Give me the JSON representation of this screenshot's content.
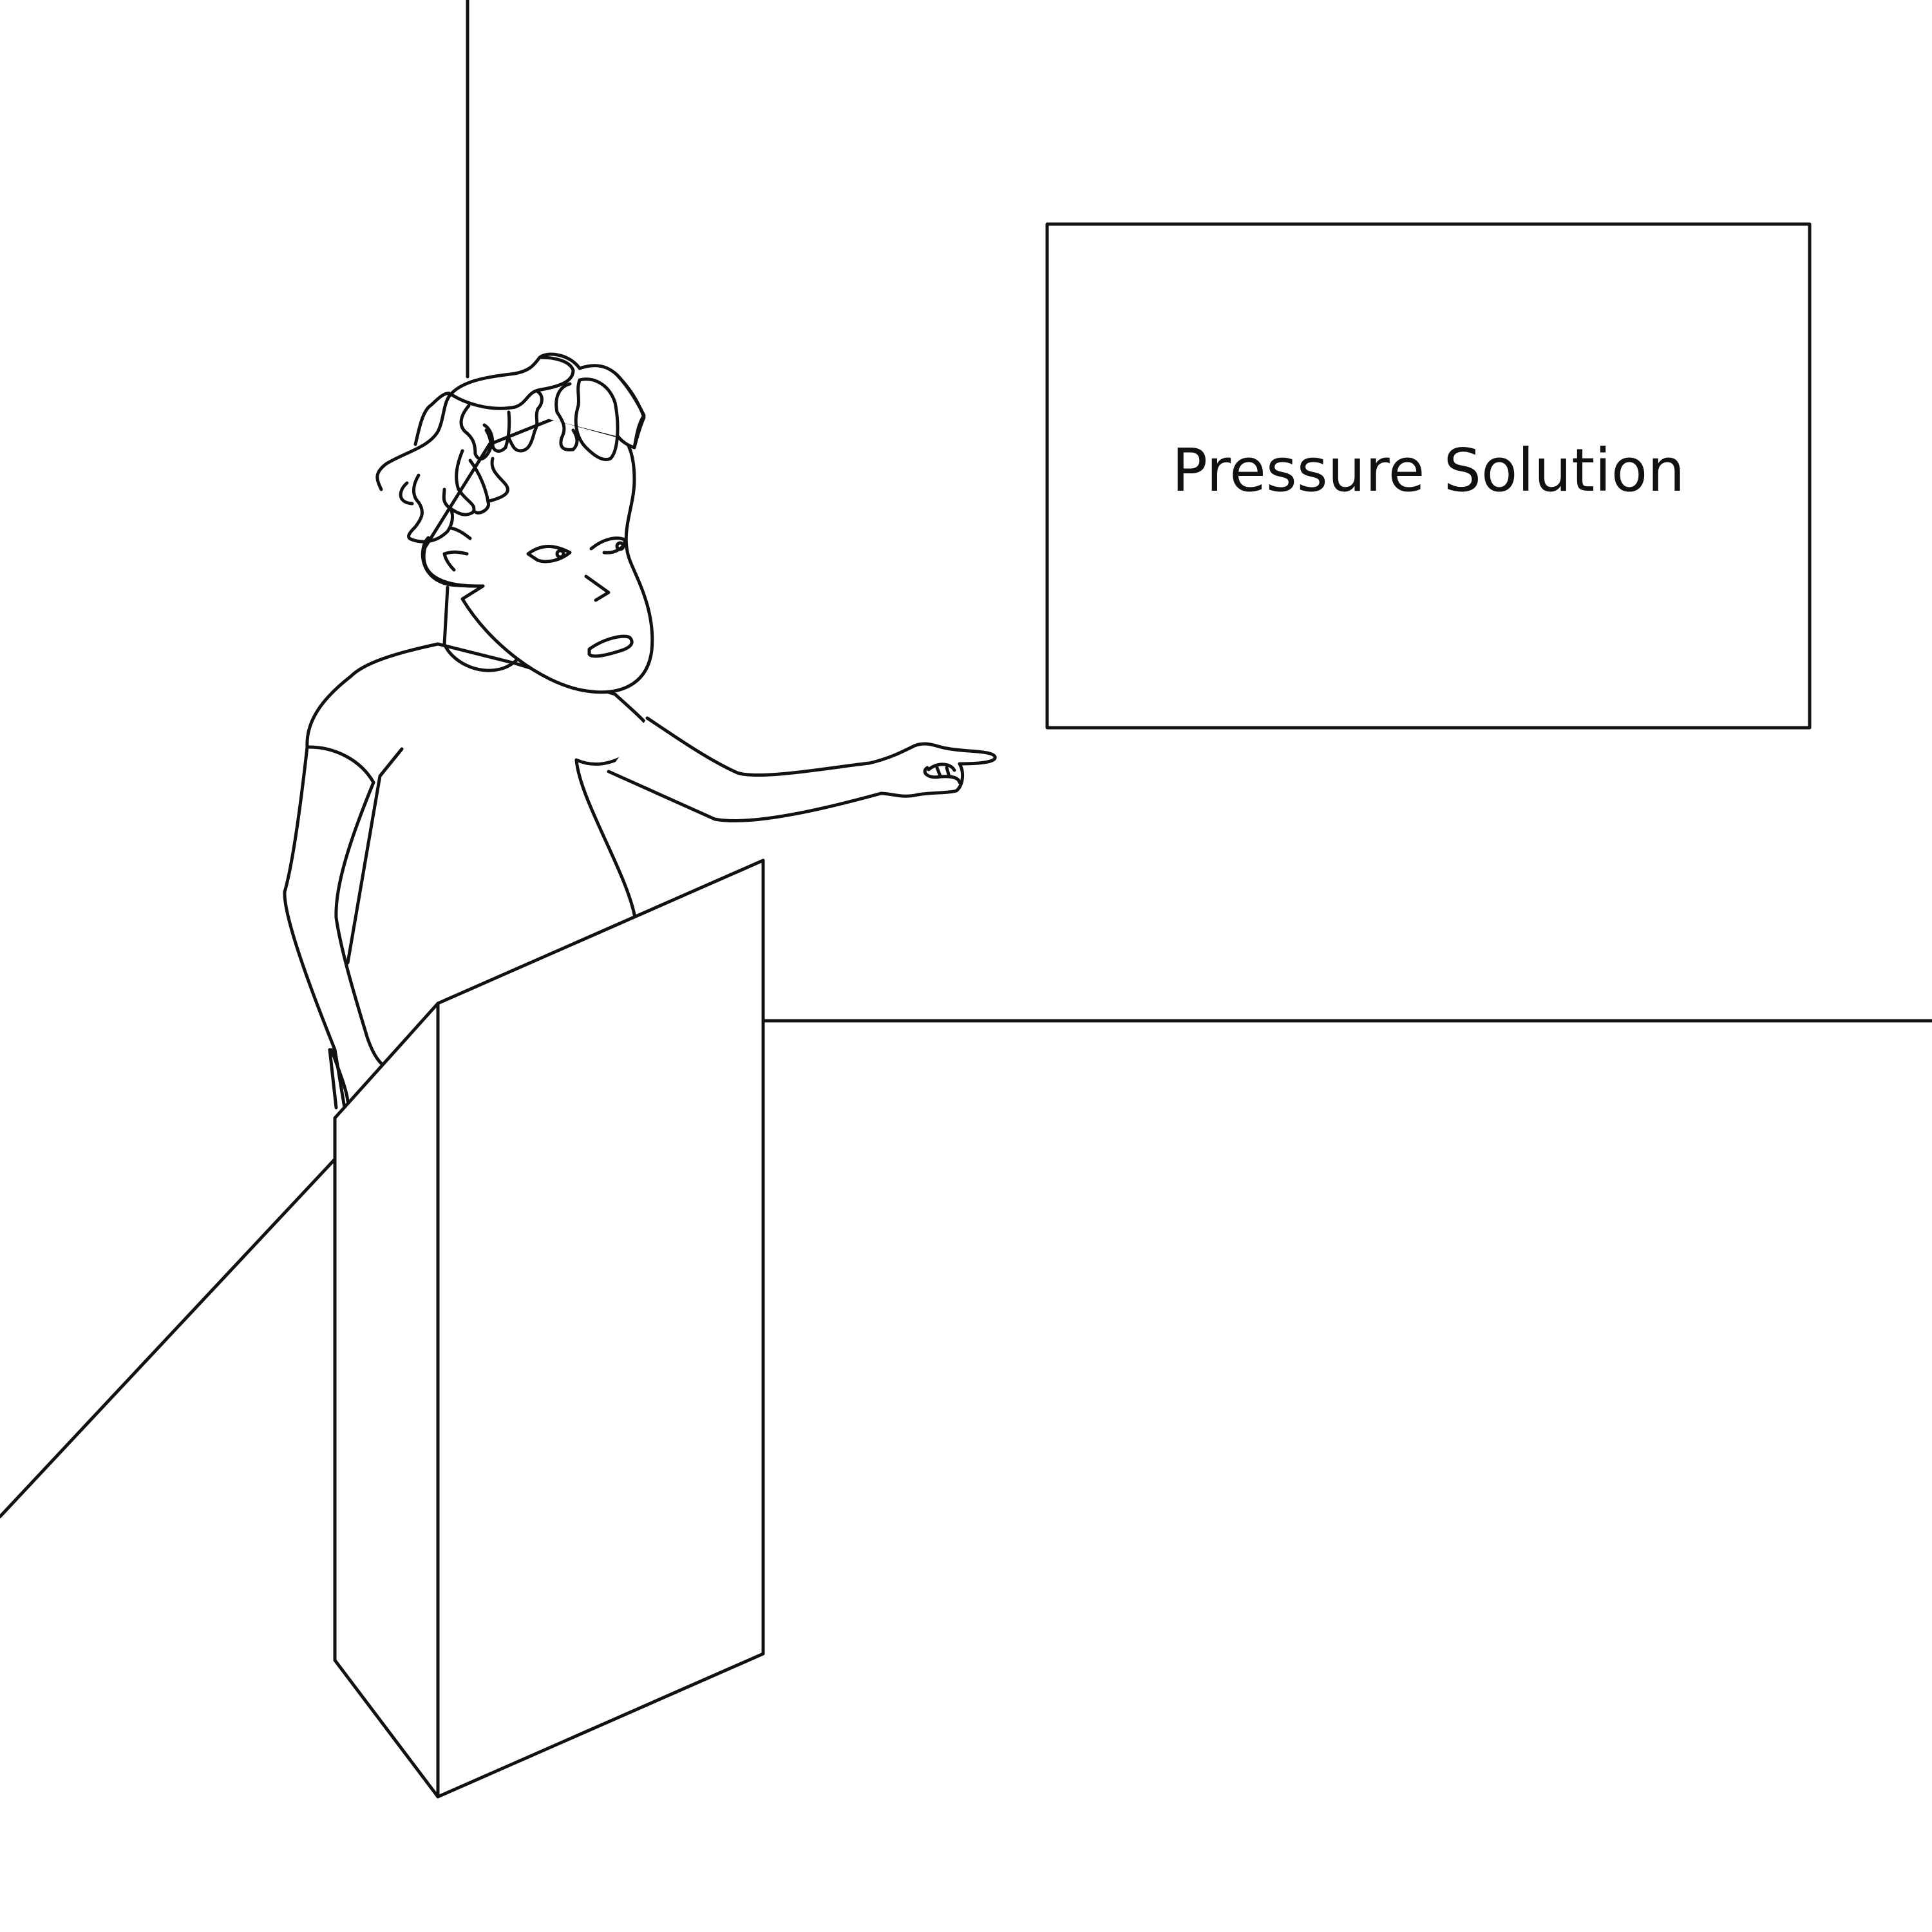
{
  "scene": {
    "board": {
      "text": "Pressure Solution"
    },
    "colors": {
      "ink": "#111111",
      "background": "#ffffff"
    }
  }
}
